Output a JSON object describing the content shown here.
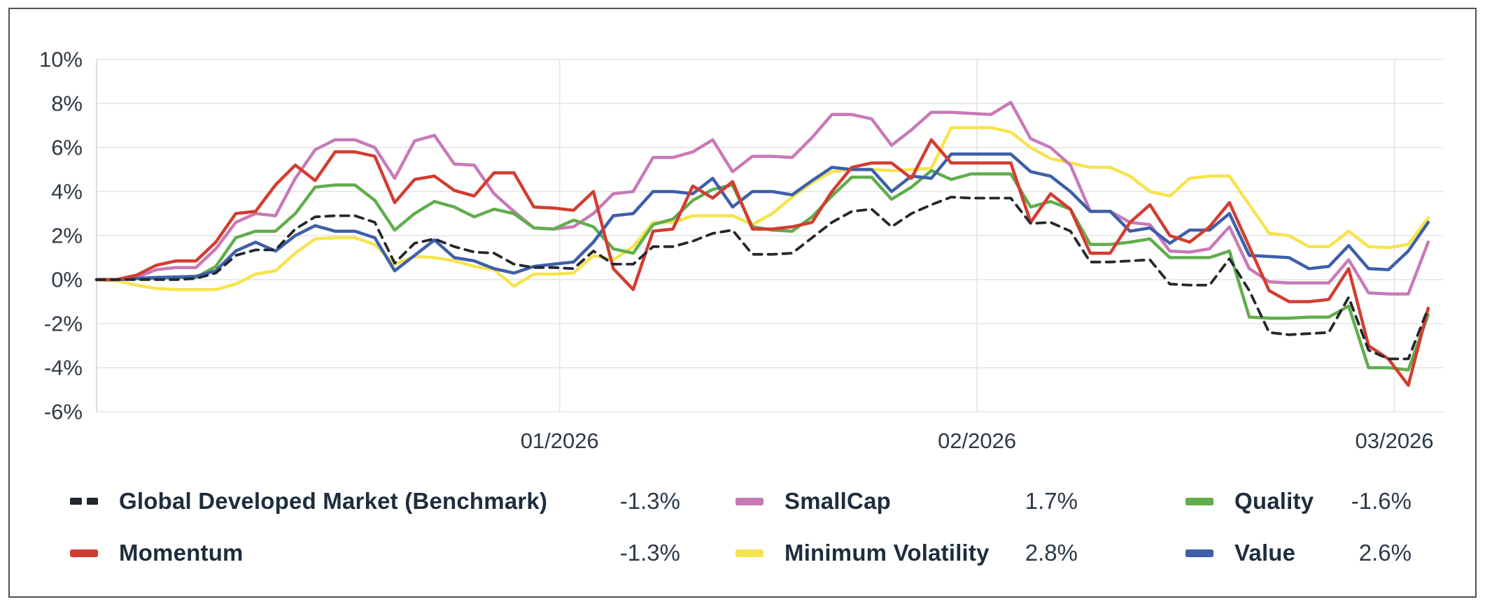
{
  "chart_data": {
    "type": "line",
    "title": "",
    "xlabel": "",
    "ylabel": "",
    "grid": true,
    "legend_position": "bottom",
    "y_axis": {
      "unit": "%",
      "ylim": [
        -6,
        10
      ],
      "ticks": [
        10,
        8,
        6,
        4,
        2,
        0,
        -2,
        -4,
        -6
      ],
      "tick_labels": [
        "10%",
        "8%",
        "6%",
        "4%",
        "2%",
        "0%",
        "-2%",
        "-4%",
        "-6%"
      ]
    },
    "x_axis": {
      "ticks": [
        {
          "label": "01/2026",
          "index": 23.3
        },
        {
          "label": "02/2026",
          "index": 44.3
        },
        {
          "label": "03/2026",
          "index": 65.3
        }
      ]
    },
    "series": [
      {
        "name": "benchmark",
        "label": "Global Developed Market (Benchmark)",
        "final_value": "-1.3%",
        "color": "#23282e",
        "dashed": true,
        "values": [
          0,
          0,
          0,
          0,
          0,
          0.05,
          0.3,
          1.1,
          1.35,
          1.35,
          2.3,
          2.85,
          2.9,
          2.9,
          2.6,
          0.75,
          1.65,
          1.85,
          1.5,
          1.25,
          1.2,
          0.7,
          0.55,
          0.55,
          0.5,
          1.3,
          0.7,
          0.7,
          1.5,
          1.5,
          1.75,
          2.1,
          2.25,
          1.15,
          1.15,
          1.2,
          1.9,
          2.6,
          3.1,
          3.2,
          2.4,
          3.0,
          3.4,
          3.75,
          3.7,
          3.7,
          3.7,
          2.55,
          2.6,
          2.2,
          0.8,
          0.8,
          0.85,
          0.9,
          -0.2,
          -0.25,
          -0.25,
          0.95,
          -0.5,
          -2.4,
          -2.5,
          -2.45,
          -2.4,
          -0.8,
          -3.2,
          -3.6,
          -3.6,
          -1.3
        ]
      },
      {
        "name": "momentum",
        "label": "Momentum",
        "final_value": "-1.3%",
        "color": "#d23d31",
        "dashed": false,
        "values": [
          0,
          0,
          0.2,
          0.65,
          0.85,
          0.85,
          1.7,
          3.0,
          3.1,
          4.3,
          5.2,
          4.5,
          5.8,
          5.8,
          5.6,
          3.5,
          4.55,
          4.7,
          4.05,
          3.8,
          4.85,
          4.85,
          3.3,
          3.25,
          3.15,
          4.0,
          0.5,
          -0.45,
          2.2,
          2.3,
          4.25,
          3.7,
          4.45,
          2.3,
          2.3,
          2.4,
          2.6,
          4.0,
          5.1,
          5.3,
          5.3,
          4.6,
          6.35,
          5.3,
          5.3,
          5.3,
          5.3,
          2.6,
          3.9,
          3.2,
          1.2,
          1.2,
          2.6,
          3.4,
          2.0,
          1.7,
          2.4,
          3.5,
          1.5,
          -0.5,
          -1.0,
          -1.0,
          -0.9,
          0.5,
          -3.0,
          -3.6,
          -4.8,
          -1.3
        ]
      },
      {
        "name": "smallcap",
        "label": "SmallCap",
        "final_value": "1.7%",
        "color": "#c87ab7",
        "dashed": false,
        "values": [
          0,
          0,
          0.1,
          0.45,
          0.55,
          0.55,
          1.4,
          2.6,
          3.0,
          2.9,
          4.6,
          5.9,
          6.35,
          6.35,
          6.0,
          4.6,
          6.3,
          6.55,
          5.25,
          5.2,
          3.9,
          3.1,
          2.35,
          2.3,
          2.4,
          3.0,
          3.9,
          4.0,
          5.55,
          5.55,
          5.8,
          6.35,
          4.9,
          5.6,
          5.6,
          5.55,
          6.45,
          7.5,
          7.5,
          7.3,
          6.1,
          6.8,
          7.6,
          7.6,
          7.55,
          7.5,
          8.05,
          6.4,
          6.0,
          5.2,
          3.1,
          3.1,
          2.6,
          2.5,
          1.3,
          1.25,
          1.4,
          2.4,
          0.5,
          -0.1,
          -0.15,
          -0.15,
          -0.15,
          0.9,
          -0.6,
          -0.65,
          -0.65,
          1.7
        ]
      },
      {
        "name": "minimum-volatility",
        "label": "Minimum Volatility",
        "final_value": "2.8%",
        "color": "#f6e44e",
        "dashed": false,
        "values": [
          0,
          -0.05,
          -0.25,
          -0.4,
          -0.45,
          -0.45,
          -0.45,
          -0.2,
          0.25,
          0.4,
          1.2,
          1.85,
          1.9,
          1.9,
          1.6,
          0.7,
          1.05,
          1.0,
          0.85,
          0.6,
          0.45,
          -0.3,
          0.25,
          0.25,
          0.3,
          1.1,
          0.9,
          1.5,
          2.6,
          2.6,
          2.9,
          2.9,
          2.9,
          2.5,
          3.0,
          3.75,
          4.4,
          4.9,
          5.0,
          5.0,
          4.95,
          5.0,
          5.05,
          6.9,
          6.9,
          6.9,
          6.7,
          6.0,
          5.5,
          5.3,
          5.1,
          5.1,
          4.7,
          4.0,
          3.8,
          4.6,
          4.7,
          4.7,
          3.4,
          2.1,
          2.0,
          1.5,
          1.5,
          2.2,
          1.5,
          1.45,
          1.6,
          2.8
        ]
      },
      {
        "name": "quality",
        "label": "Quality",
        "final_value": "-1.6%",
        "color": "#61ad4d",
        "dashed": false,
        "values": [
          0,
          0,
          0.05,
          0.05,
          0.1,
          0.1,
          0.6,
          1.9,
          2.2,
          2.2,
          3.0,
          4.2,
          4.3,
          4.3,
          3.6,
          2.25,
          3.0,
          3.55,
          3.3,
          2.85,
          3.2,
          3.0,
          2.35,
          2.3,
          2.7,
          2.4,
          1.4,
          1.2,
          2.5,
          2.75,
          3.6,
          4.1,
          4.3,
          2.4,
          2.25,
          2.2,
          2.85,
          3.8,
          4.65,
          4.65,
          3.65,
          4.2,
          4.95,
          4.55,
          4.8,
          4.8,
          4.8,
          3.3,
          3.55,
          3.2,
          1.6,
          1.6,
          1.7,
          1.85,
          1.0,
          1.0,
          1.0,
          1.3,
          -1.7,
          -1.75,
          -1.75,
          -1.7,
          -1.7,
          -1.2,
          -4.0,
          -4.0,
          -4.1,
          -1.6
        ]
      },
      {
        "name": "value",
        "label": "Value",
        "final_value": "2.6%",
        "color": "#3e5fa9",
        "dashed": false,
        "values": [
          0,
          0,
          0.05,
          0.1,
          0.12,
          0.15,
          0.4,
          1.3,
          1.7,
          1.3,
          2.0,
          2.45,
          2.2,
          2.2,
          1.9,
          0.4,
          1.1,
          1.8,
          1.0,
          0.85,
          0.5,
          0.3,
          0.6,
          0.7,
          0.8,
          1.7,
          2.9,
          3.0,
          4.0,
          4.0,
          3.9,
          4.6,
          3.3,
          4.0,
          4.0,
          3.85,
          4.5,
          5.1,
          5.0,
          5.0,
          4.0,
          4.7,
          4.6,
          5.7,
          5.7,
          5.7,
          5.7,
          4.9,
          4.7,
          4.0,
          3.1,
          3.1,
          2.2,
          2.35,
          1.65,
          2.25,
          2.25,
          3.0,
          1.1,
          1.05,
          1.0,
          0.5,
          0.6,
          1.55,
          0.5,
          0.45,
          1.3,
          2.6
        ]
      }
    ],
    "draw_order": [
      3,
      2,
      4,
      5,
      1,
      0
    ],
    "colors": {
      "grid": "#e4e4e4",
      "axis_line": "#d9d9d9",
      "tick_text": "#2d3945",
      "frame": "#4b5157"
    }
  },
  "legend": {
    "note": "labels and values mirror chart_data.series"
  }
}
